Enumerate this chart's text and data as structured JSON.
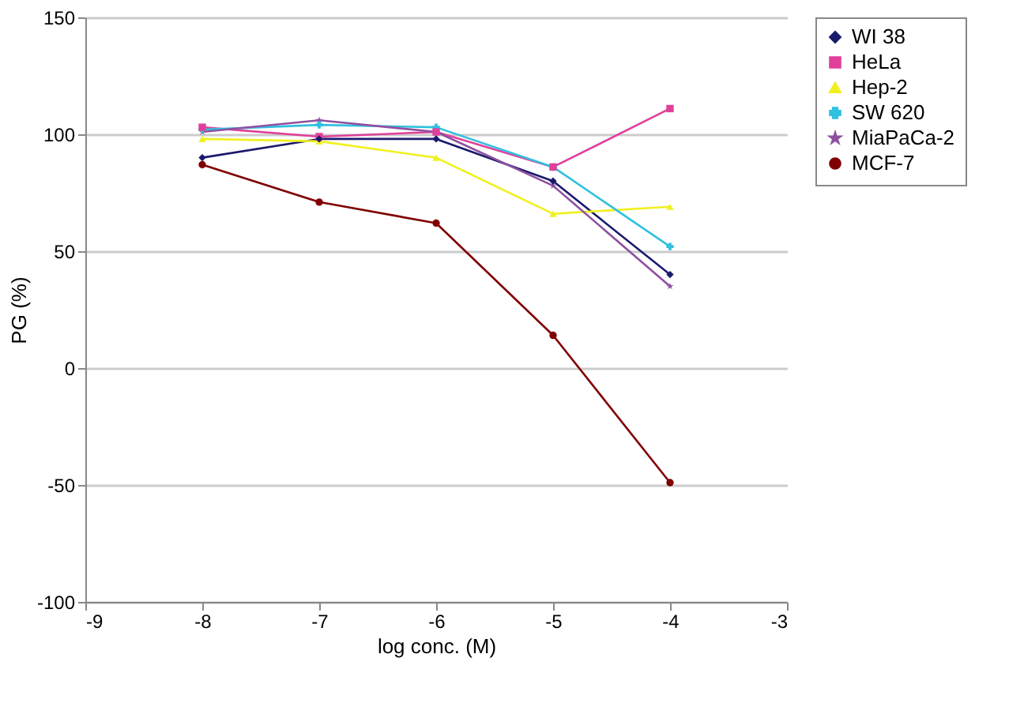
{
  "chart_data": {
    "type": "line",
    "xlabel": "log conc. (M)",
    "ylabel": "PG (%)",
    "x": [
      -8,
      -7,
      -6,
      -5,
      -4
    ],
    "xlim": [
      -9,
      -3
    ],
    "xticks": [
      -9,
      -8,
      -7,
      -6,
      -5,
      -4,
      -3
    ],
    "ylim": [
      -100,
      150
    ],
    "yticks": [
      -100,
      -50,
      0,
      50,
      100,
      150
    ],
    "grid": "y",
    "legend": "right",
    "series": [
      {
        "name": "WI 38",
        "color": "#1a1a6e",
        "marker": "diamond",
        "values": [
          90,
          98,
          98,
          80,
          40
        ]
      },
      {
        "name": "HeLa",
        "color": "#e0409a",
        "marker": "square",
        "values": [
          103,
          99,
          101,
          86,
          111
        ]
      },
      {
        "name": "Hep-2",
        "color": "#f0f020",
        "marker": "triangle",
        "values": [
          98,
          97,
          90,
          66,
          69
        ]
      },
      {
        "name": "SW 620",
        "color": "#30c0e0",
        "marker": "cross",
        "values": [
          102,
          104,
          103,
          86,
          52
        ]
      },
      {
        "name": "MiaPaCa-2",
        "color": "#9050a0",
        "marker": "star",
        "values": [
          101,
          106,
          101,
          78,
          35
        ]
      },
      {
        "name": "MCF-7",
        "color": "#800000",
        "marker": "circle",
        "values": [
          87,
          71,
          62,
          14,
          -49
        ]
      }
    ]
  }
}
